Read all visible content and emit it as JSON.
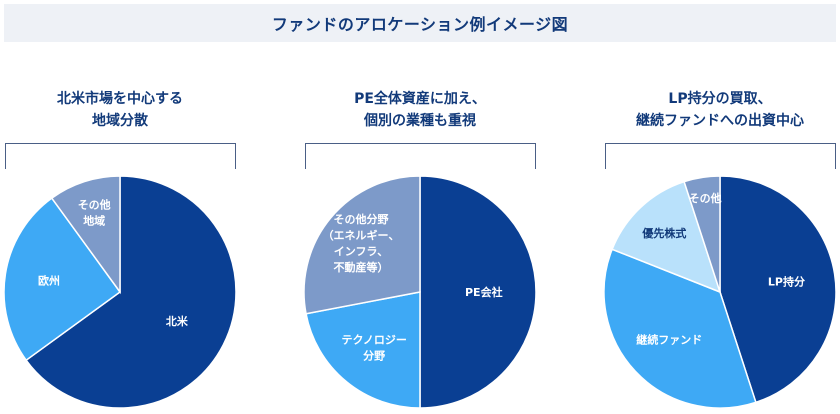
{
  "header": {
    "title": "ファンドのアロケーション例イメージ図"
  },
  "chart_data": [
    {
      "type": "pie",
      "title_lines": [
        "北米市場を中心する",
        "地域分散"
      ],
      "slices": [
        {
          "label": [
            "北米"
          ],
          "value": 65,
          "color": "#0a3f93",
          "label_tone": "light"
        },
        {
          "label": [
            "欧州"
          ],
          "value": 25,
          "color": "#3ea9f5",
          "label_tone": "light"
        },
        {
          "label": [
            "その他",
            "地域"
          ],
          "value": 10,
          "color": "#7d9ac9",
          "label_tone": "light"
        }
      ]
    },
    {
      "type": "pie",
      "title_lines": [
        "PE全体資産に加え、",
        "個別の業種も重視"
      ],
      "slices": [
        {
          "label": [
            "PE会社"
          ],
          "value": 50,
          "color": "#0a3f93",
          "label_tone": "light"
        },
        {
          "label": [
            "テクノロジー",
            "分野"
          ],
          "value": 22,
          "color": "#3ea9f5",
          "label_tone": "light"
        },
        {
          "label": [
            "その他分野",
            "（エネルギー、",
            "インフラ、",
            "不動産等）"
          ],
          "value": 28,
          "color": "#7d9ac9",
          "label_tone": "light"
        }
      ]
    },
    {
      "type": "pie",
      "title_lines": [
        "LP持分の買取、",
        "継続ファンドへの出資中心"
      ],
      "slices": [
        {
          "label": [
            "LP持分"
          ],
          "value": 45,
          "color": "#0a3f93",
          "label_tone": "light"
        },
        {
          "label": [
            "継続ファンド"
          ],
          "value": 36,
          "color": "#3ea9f5",
          "label_tone": "light"
        },
        {
          "label": [
            "優先株式"
          ],
          "value": 14,
          "color": "#b9e1fb",
          "label_tone": "dark"
        },
        {
          "label": [
            "その他"
          ],
          "value": 5,
          "color": "#7d9ac9",
          "label_tone": "light"
        }
      ]
    }
  ]
}
